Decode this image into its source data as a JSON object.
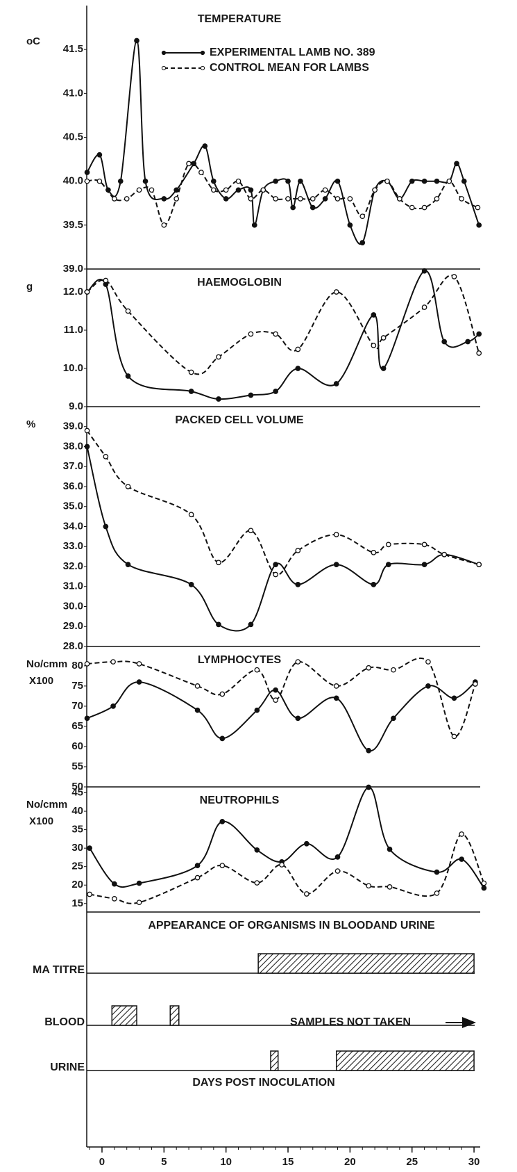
{
  "chart_data": [
    {
      "type": "line",
      "title": "TEMPERATURE",
      "ylabel": [
        "oC"
      ],
      "ylim": [
        39.0,
        42.0
      ],
      "yticks": [
        {
          "value": 39.0,
          "label": "39.0"
        },
        39.5,
        {
          "value": 40.0,
          "label": "40.0"
        },
        40.5,
        {
          "value": 41.0,
          "label": "41.0"
        },
        41.5
      ],
      "legend": "top",
      "series": [
        {
          "name": "EXPERIMENTAL LAMB NO. 389",
          "color": "#111111",
          "style": "solid",
          "marker": "filled",
          "x": [
            -1.2,
            -0.2,
            0.5,
            1.5,
            2.8,
            3.5,
            5,
            6,
            7.4,
            8.3,
            9,
            10,
            11,
            12,
            12.3,
            13,
            14,
            15,
            15.4,
            16,
            17,
            18,
            19,
            20,
            21,
            22,
            23,
            24,
            25,
            26,
            27,
            28,
            28.6,
            29.2,
            30.4
          ],
          "values": [
            40.1,
            40.3,
            39.9,
            40.0,
            41.6,
            40.0,
            39.8,
            39.9,
            40.2,
            40.4,
            40.0,
            39.8,
            39.9,
            39.9,
            39.5,
            39.9,
            40.0,
            40.0,
            39.7,
            40.0,
            39.7,
            39.8,
            40.0,
            39.5,
            39.3,
            39.9,
            40.0,
            39.8,
            40.0,
            40.0,
            40.0,
            40.0,
            40.2,
            40.0,
            39.5
          ]
        },
        {
          "name": "CONTROL MEAN FOR LAMBS",
          "color": "#111111",
          "style": "dashed",
          "marker": "open",
          "x": [
            -1.2,
            -0.2,
            1,
            2,
            3,
            4,
            5,
            6,
            7,
            8,
            9,
            10,
            11,
            12,
            13,
            14,
            15,
            16,
            17,
            18,
            19,
            20,
            21,
            22,
            23,
            24,
            25,
            26,
            27,
            28,
            29,
            30.3
          ],
          "values": [
            40.0,
            40.0,
            39.8,
            39.8,
            39.9,
            39.9,
            39.5,
            39.8,
            40.2,
            40.1,
            39.9,
            39.9,
            40.0,
            39.8,
            39.9,
            39.8,
            39.8,
            39.8,
            39.8,
            39.9,
            39.8,
            39.8,
            39.6,
            39.9,
            40.0,
            39.8,
            39.7,
            39.7,
            39.8,
            40.0,
            39.8,
            39.7
          ]
        }
      ]
    },
    {
      "type": "line",
      "title": "HAEMOGLOBIN",
      "ylabel": [
        "g"
      ],
      "ylim": [
        9.0,
        12.6
      ],
      "yticks": [
        {
          "value": 9.0,
          "label": "9.0"
        },
        {
          "value": 10.0,
          "label": "10.0"
        },
        {
          "value": 11.0,
          "label": "11.0"
        },
        {
          "value": 12.0,
          "label": "12.0"
        }
      ],
      "series": [
        {
          "color": "#111111",
          "style": "solid",
          "marker": "filled",
          "x": [
            -1.2,
            0.3,
            2.1,
            7.2,
            9.4,
            12,
            14,
            15.8,
            18.9,
            21.9,
            22.7,
            26,
            27.6,
            29.5,
            30.4
          ],
          "values": [
            12.0,
            12.2,
            9.8,
            9.4,
            9.2,
            9.3,
            9.4,
            10.0,
            9.6,
            11.4,
            10.0,
            12.55,
            10.7,
            10.7,
            10.9
          ]
        },
        {
          "color": "#111111",
          "style": "dashed",
          "marker": "open",
          "x": [
            -1.2,
            0.3,
            2.1,
            7.2,
            9.4,
            12,
            14,
            15.8,
            18.9,
            21.9,
            22.7,
            26,
            28.4,
            30.4
          ],
          "values": [
            12.0,
            12.3,
            11.5,
            9.9,
            10.3,
            10.9,
            10.9,
            10.5,
            12.0,
            10.6,
            10.8,
            11.6,
            12.4,
            10.4
          ]
        }
      ]
    },
    {
      "type": "line",
      "title": "PACKED CELL VOLUME",
      "ylabel": [
        "%"
      ],
      "ylim": [
        28.0,
        40.0
      ],
      "yticks": [
        {
          "value": 28.0,
          "label": "28.0"
        },
        {
          "value": 29.0,
          "label": "29.0"
        },
        {
          "value": 30.0,
          "label": "30.0"
        },
        {
          "value": 31.0,
          "label": "31.0"
        },
        {
          "value": 32.0,
          "label": "32.0"
        },
        {
          "value": 33.0,
          "label": "33.0"
        },
        {
          "value": 34.0,
          "label": "34.0"
        },
        {
          "value": 35.0,
          "label": "35.0"
        },
        {
          "value": 36.0,
          "label": "36.0"
        },
        {
          "value": 37.0,
          "label": "37.0"
        },
        {
          "value": 38.0,
          "label": "38.0"
        },
        {
          "value": 39.0,
          "label": "39.0"
        }
      ],
      "series": [
        {
          "color": "#111111",
          "style": "solid",
          "marker": "filled",
          "x": [
            -1.2,
            0.3,
            2.1,
            7.2,
            9.4,
            12,
            14,
            15.8,
            18.9,
            21.9,
            23.1,
            26,
            27.6,
            30.4
          ],
          "values": [
            38.0,
            34.0,
            32.1,
            31.1,
            29.1,
            29.1,
            32.1,
            31.1,
            32.1,
            31.1,
            32.1,
            32.1,
            32.6,
            32.1
          ]
        },
        {
          "color": "#111111",
          "style": "dashed",
          "marker": "open",
          "x": [
            -1.2,
            0.3,
            2.1,
            7.2,
            9.4,
            12,
            14,
            15.8,
            18.9,
            21.9,
            23.1,
            26,
            27.6,
            30.4
          ],
          "values": [
            38.8,
            37.5,
            36.0,
            34.6,
            32.2,
            33.8,
            31.6,
            32.8,
            33.6,
            32.7,
            33.1,
            33.1,
            32.6,
            32.1
          ]
        }
      ]
    },
    {
      "type": "line",
      "title": "LYMPHOCYTES",
      "ylabel": [
        "No/cmm",
        "X100"
      ],
      "ylim": [
        50,
        84.8
      ],
      "yticks": [
        50,
        55,
        60,
        65,
        70,
        75,
        80
      ],
      "series": [
        {
          "color": "#111111",
          "style": "solid",
          "marker": "filled",
          "x": [
            -1.2,
            0.9,
            3,
            7.7,
            9.7,
            12.5,
            14,
            15.8,
            18.9,
            21.5,
            23.5,
            26.3,
            28.4,
            30.1
          ],
          "values": [
            67,
            70,
            76,
            69,
            62,
            69,
            74,
            67,
            72,
            59,
            67,
            75,
            72,
            76
          ]
        },
        {
          "color": "#111111",
          "style": "dashed",
          "marker": "open",
          "x": [
            -1.2,
            0.9,
            3,
            7.7,
            9.7,
            12.5,
            14,
            15.8,
            18.9,
            21.5,
            23.5,
            26.3,
            28.4,
            30.1
          ],
          "values": [
            80.5,
            81,
            80.5,
            75,
            73,
            79,
            71.5,
            81,
            75,
            79.5,
            79,
            81,
            62.5,
            75.5
          ]
        }
      ]
    },
    {
      "type": "line",
      "title": "NEUTROPHILS",
      "ylabel": [
        "No/cmm",
        "X100"
      ],
      "ylim": [
        12.7,
        46.6
      ],
      "yticks": [
        15,
        20,
        25,
        30,
        35,
        40,
        45
      ],
      "series": [
        {
          "color": "#111111",
          "style": "solid",
          "marker": "filled",
          "x": [
            -1,
            1,
            3,
            7.7,
            9.7,
            12.5,
            14.5,
            16.5,
            19,
            21.5,
            23.2,
            27,
            29,
            30.8
          ],
          "values": [
            30,
            20.3,
            20.5,
            25.3,
            37.2,
            29.5,
            26.3,
            31.2,
            27.6,
            46.5,
            29.7,
            23.5,
            27.0,
            19.2
          ]
        },
        {
          "color": "#111111",
          "style": "dashed",
          "marker": "open",
          "x": [
            -1,
            1,
            3,
            7.7,
            9.7,
            12.5,
            14.5,
            16.5,
            19,
            21.5,
            23.2,
            27,
            29,
            30.8
          ],
          "values": [
            17.5,
            16.3,
            15.3,
            22.0,
            25.3,
            20.6,
            25.5,
            17.6,
            23.8,
            19.8,
            19.5,
            17.8,
            33.8,
            20.5
          ]
        }
      ]
    },
    {
      "type": "timeline",
      "title": "APPEARANCE OF ORGANISMS IN BLOODAND URINE",
      "rows": [
        {
          "label": "MA TITRE",
          "ranges": [
            [
              12.6,
              30
            ]
          ]
        },
        {
          "label": "BLOOD",
          "ranges": [
            [
              0.8,
              2.8
            ],
            [
              5.5,
              6.2
            ]
          ],
          "annotation": "SAMPLES NOT TAKEN"
        },
        {
          "label": "URINE",
          "ranges": [
            [
              13.6,
              14.2
            ],
            [
              18.9,
              30
            ]
          ]
        }
      ],
      "xlabel": "DAYS POST INOCULATION",
      "xlim": [
        -1.23,
        30.5
      ],
      "xticks": [
        0,
        5,
        10,
        15,
        20,
        25,
        30
      ]
    }
  ]
}
